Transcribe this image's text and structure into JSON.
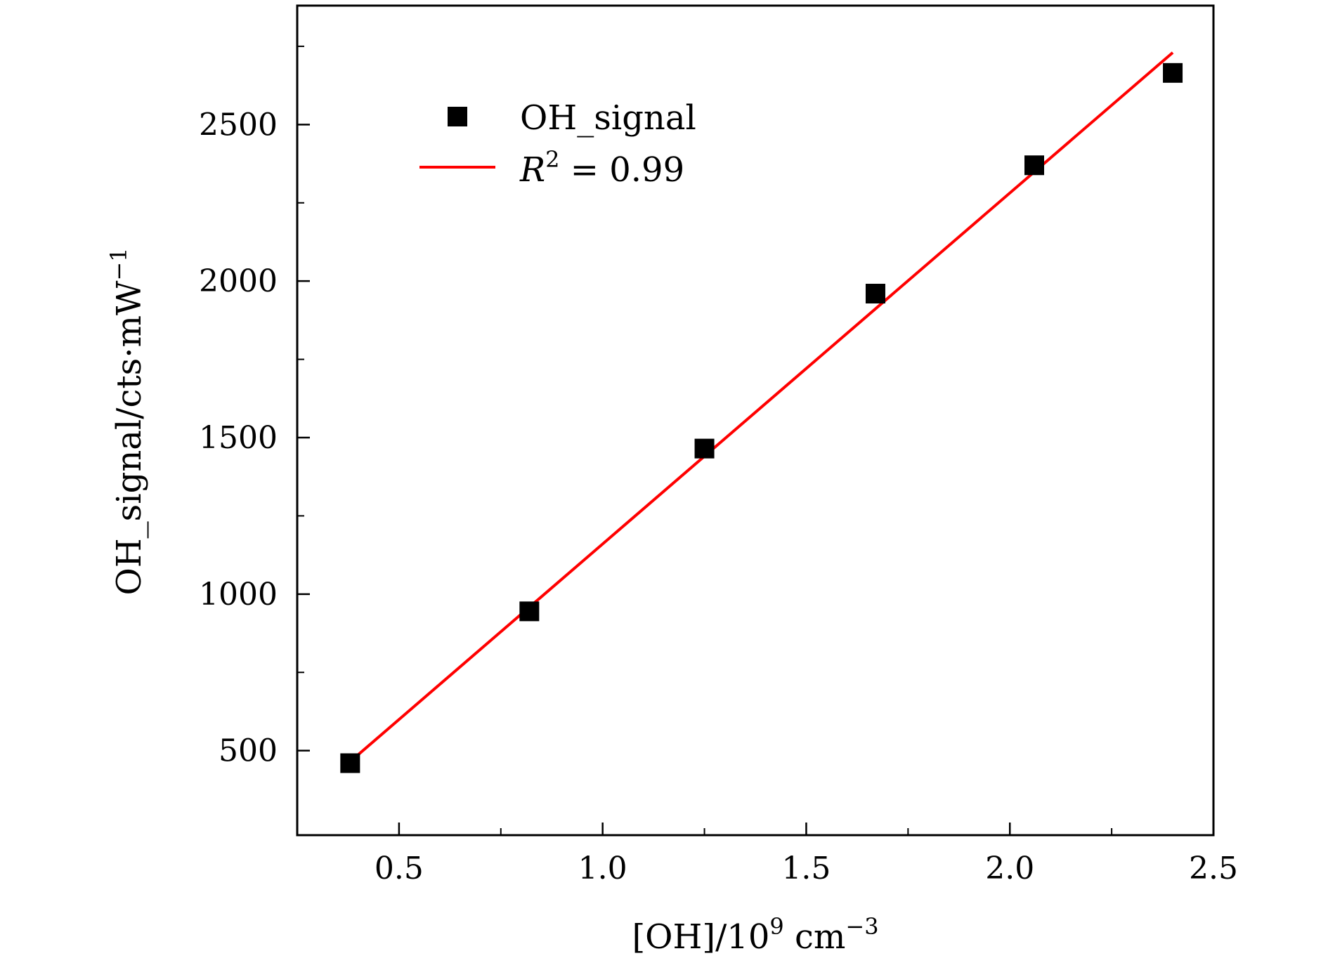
{
  "chart_data": {
    "type": "scatter",
    "xlabel": {
      "base": "[OH]/10",
      "sup1": "9",
      "mid": " cm",
      "sup2": "−3"
    },
    "ylabel": {
      "base": "OH_signal/cts·mW",
      "sup": "−1"
    },
    "xlim": [
      0.25,
      2.5
    ],
    "ylim": [
      230,
      2880
    ],
    "x_ticks": [
      0.5,
      1.0,
      1.5,
      2.0,
      2.5
    ],
    "x_tick_labels": [
      "0.5",
      "1.0",
      "1.5",
      "2.0",
      "2.5"
    ],
    "x_minor_ticks": [
      0.25,
      0.75,
      1.25,
      1.75,
      2.25
    ],
    "y_ticks": [
      500,
      1000,
      1500,
      2000,
      2500
    ],
    "y_tick_labels": [
      "500",
      "1000",
      "1500",
      "2000",
      "2500"
    ],
    "y_minor_ticks": [
      750,
      1250,
      1750,
      2250,
      2750
    ],
    "grid": false,
    "legend_position": "top-left",
    "series": [
      {
        "name": "OH_signal",
        "kind": "scatter",
        "marker": "square",
        "color": "#000000",
        "x": [
          0.38,
          0.82,
          1.25,
          1.67,
          2.06,
          2.4
        ],
        "y": [
          460,
          945,
          1465,
          1960,
          2370,
          2665
        ],
        "yerr": [
          12,
          12,
          18,
          15,
          20,
          25
        ]
      },
      {
        "name": "R² = 0.99",
        "legend_label": {
          "letter": "R",
          "sup": "2",
          "rest": " = 0.99"
        },
        "kind": "line",
        "color": "#ff0000",
        "x": [
          0.38,
          2.4
        ],
        "y": [
          465,
          2730
        ]
      }
    ]
  }
}
